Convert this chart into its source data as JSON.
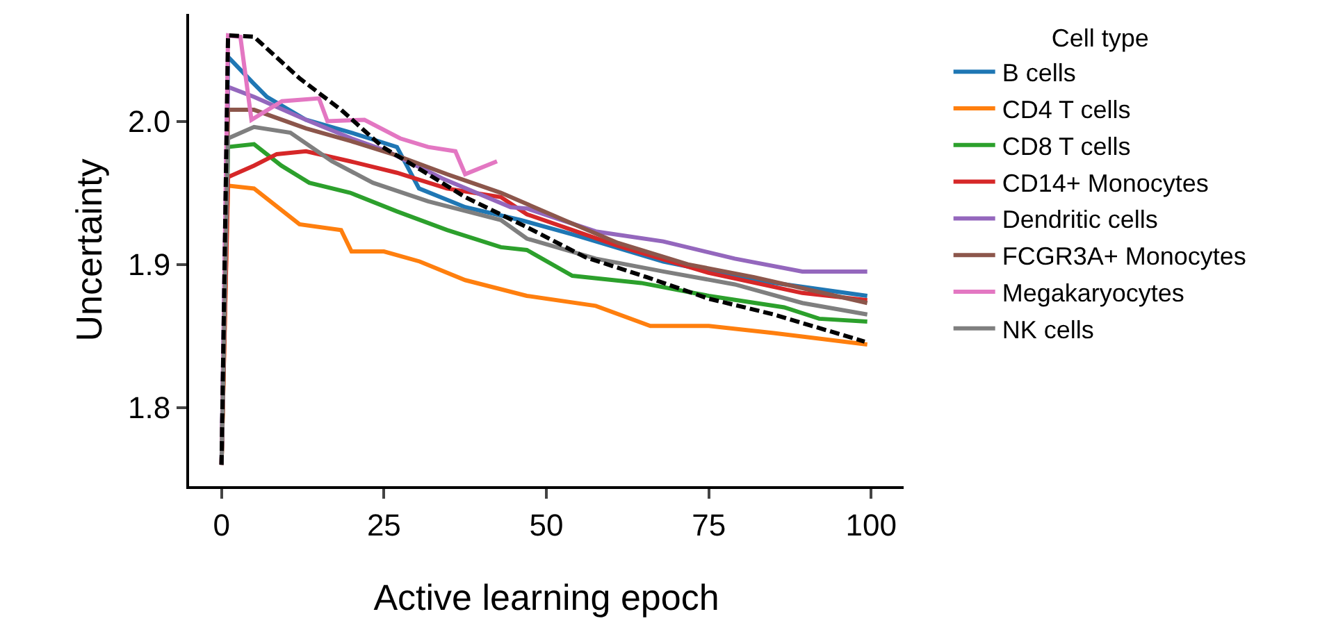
{
  "chart_data": {
    "type": "line",
    "xlabel": "Active learning epoch",
    "ylabel": "Uncertainty",
    "legend_title": "Cell type",
    "legend": "right",
    "grid": false,
    "marker": "none",
    "xlim": [
      -5,
      105
    ],
    "xticks": [
      0,
      25,
      50,
      75,
      100
    ],
    "ylim": [
      1.745,
      2.075
    ],
    "yticks": [
      1.8,
      1.9,
      {
        "value": 2.0,
        "label": "2.0"
      }
    ],
    "series": [
      {
        "name": "B cells",
        "color": "#1f77b4",
        "x": [
          0,
          1,
          4.8,
          7,
          13,
          20,
          27,
          30.4,
          37.5,
          46,
          54,
          68,
          82,
          99.4
        ],
        "values": [
          1.76,
          2.045,
          2.027,
          2.017,
          2.001,
          1.992,
          1.982,
          1.953,
          1.94,
          1.931,
          1.921,
          1.902,
          1.889,
          1.878
        ]
      },
      {
        "name": "CD4 T cells",
        "color": "#ff7f0e",
        "x": [
          0,
          1,
          5,
          12,
          18.4,
          20,
          25,
          30.5,
          37.5,
          47,
          57.6,
          66,
          75,
          85,
          99.4
        ],
        "values": [
          1.76,
          1.955,
          1.953,
          1.928,
          1.924,
          1.909,
          1.909,
          1.902,
          1.889,
          1.878,
          1.871,
          1.857,
          1.857,
          1.852,
          1.844
        ]
      },
      {
        "name": "CD8 T cells",
        "color": "#2ca02c",
        "x": [
          0,
          1,
          5,
          9.2,
          13.5,
          19.8,
          27,
          34.7,
          43,
          47,
          54,
          64.6,
          75,
          86.6,
          92,
          99.4
        ],
        "values": [
          1.76,
          1.982,
          1.984,
          1.969,
          1.957,
          1.95,
          1.937,
          1.924,
          1.912,
          1.91,
          1.892,
          1.887,
          1.878,
          1.87,
          1.862,
          1.86
        ]
      },
      {
        "name": "CD14+ Monocytes",
        "color": "#d62728",
        "x": [
          0,
          1,
          5,
          8.5,
          13,
          19.8,
          27,
          34.7,
          43,
          47,
          61,
          75,
          89.4,
          99.4
        ],
        "values": [
          1.76,
          1.961,
          1.969,
          1.977,
          1.979,
          1.972,
          1.964,
          1.953,
          1.947,
          1.935,
          1.913,
          1.894,
          1.88,
          1.875
        ]
      },
      {
        "name": "Dendritic cells",
        "color": "#9467bd",
        "x": [
          0,
          1,
          5,
          13,
          20,
          25.5,
          34,
          44.5,
          47,
          57.6,
          68,
          79,
          89.4,
          99.4
        ],
        "values": [
          1.76,
          2.024,
          2.017,
          2.001,
          1.988,
          1.979,
          1.96,
          1.94,
          1.939,
          1.923,
          1.916,
          1.904,
          1.895,
          1.895
        ]
      },
      {
        "name": "FCGR3A+ Monocytes",
        "color": "#8c564b",
        "x": [
          0,
          1,
          5,
          13,
          20,
          27,
          34.7,
          43,
          52.7,
          61,
          71.8,
          82,
          99.4
        ],
        "values": [
          1.76,
          2.008,
          2.008,
          1.995,
          1.986,
          1.976,
          1.963,
          1.95,
          1.931,
          1.915,
          1.9,
          1.891,
          1.873
        ]
      },
      {
        "name": "Megakaryocytes",
        "color": "#e377c2",
        "x": [
          0,
          1,
          2.9,
          4.6,
          9.3,
          15,
          16.3,
          22,
          27.5,
          31.8,
          36,
          37.5,
          42.4
        ],
        "values": [
          1.76,
          2.06,
          2.059,
          2.001,
          2.014,
          2.016,
          2.0,
          2.001,
          1.988,
          1.982,
          1.979,
          1.963,
          1.972
        ]
      },
      {
        "name": "NK cells",
        "color": "#7f7f7f",
        "x": [
          0,
          1,
          5,
          10.6,
          17,
          23.3,
          31.8,
          43,
          47,
          57.6,
          68,
          79,
          89.4,
          99.4
        ],
        "values": [
          1.76,
          1.988,
          1.996,
          1.992,
          1.972,
          1.957,
          1.944,
          1.931,
          1.918,
          1.904,
          1.895,
          1.886,
          1.873,
          1.865
        ]
      },
      {
        "color": "#000000",
        "line_style": "dashed",
        "x": [
          0,
          1,
          5,
          12,
          18.4,
          24.8,
          31.8,
          37.5,
          47,
          56,
          65.5,
          75,
          85,
          99
        ],
        "values": [
          1.76,
          2.06,
          2.059,
          2.03,
          2.008,
          1.982,
          1.963,
          1.947,
          1.926,
          1.905,
          1.891,
          1.876,
          1.865,
          1.846
        ]
      }
    ]
  }
}
